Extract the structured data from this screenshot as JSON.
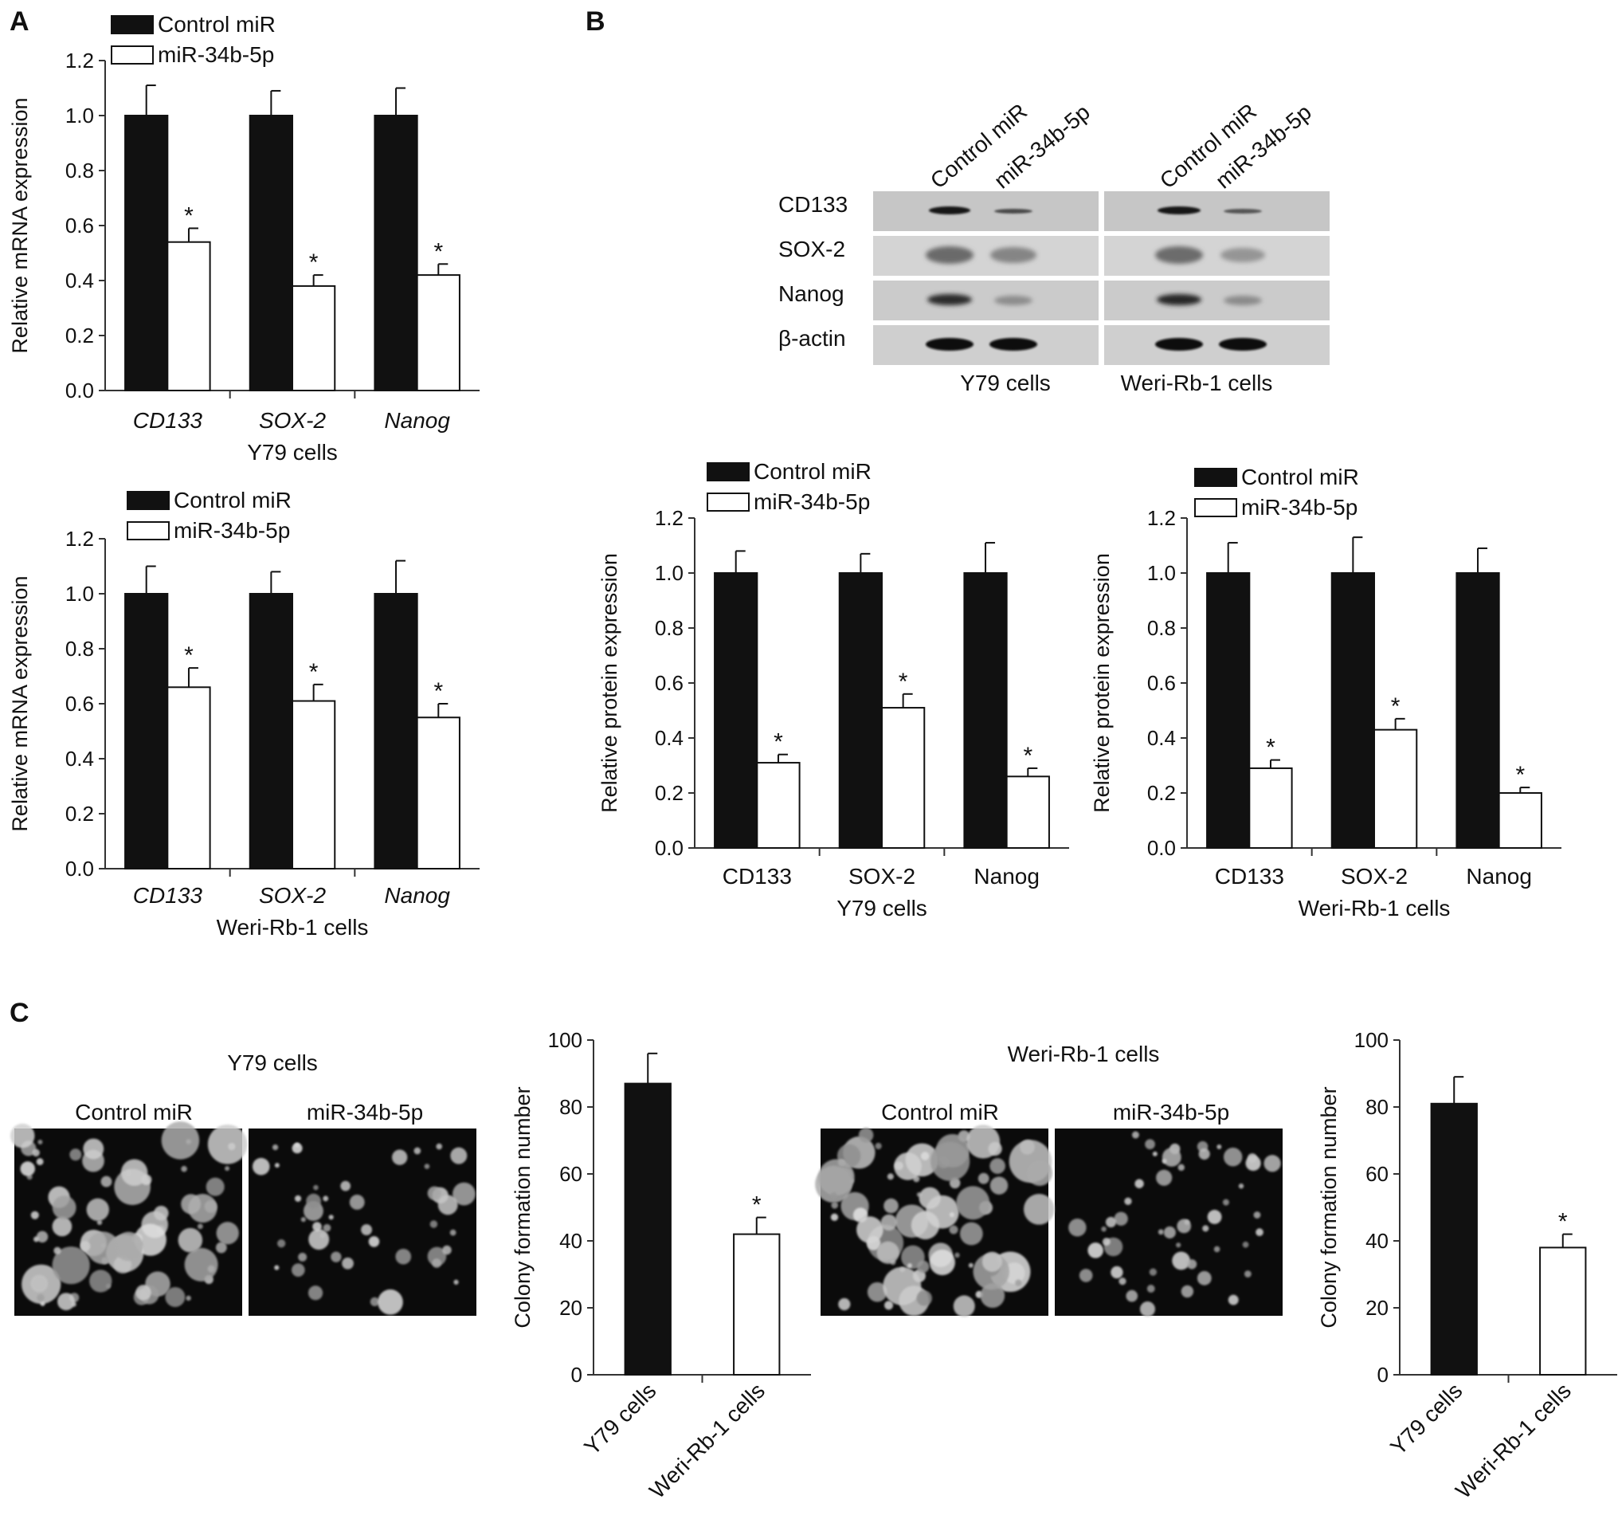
{
  "panels": {
    "a": {
      "letter": "A"
    },
    "b": {
      "letter": "B"
    },
    "c": {
      "letter": "C"
    }
  },
  "colors": {
    "control": "#111111",
    "treated": "#ffffff",
    "axis": "#333333"
  },
  "western_blot": {
    "lane_labels": [
      "Control miR",
      "miR-34b-5p",
      "Control miR",
      "miR-34b-5p"
    ],
    "band_labels": [
      "CD133",
      "SOX-2",
      "Nanog",
      "β-actin"
    ],
    "group_labels": [
      "Y79 cells",
      "Weri-Rb-1 cells"
    ]
  },
  "colony_images": [
    {
      "title": "Y79 cells",
      "labels": [
        "Control miR",
        "miR-34b-5p"
      ]
    },
    {
      "title": "Weri-Rb-1 cells",
      "labels": [
        "Control miR",
        "miR-34b-5p"
      ]
    }
  ],
  "chart_data": [
    {
      "id": "a1",
      "type": "bar",
      "categories": [
        "CD133",
        "SOX-2",
        "Nanog"
      ],
      "categories_italic": true,
      "xlabel": "Y79 cells",
      "ylabel": "Relative mRNA expression",
      "ylim": [
        0,
        1.2
      ],
      "yticks": [
        "0.0",
        "0.2",
        "0.4",
        "0.6",
        "0.8",
        "1.0",
        "1.2"
      ],
      "legend_position": "top-left",
      "series": [
        {
          "name": "Control miR",
          "values": [
            1.0,
            1.0,
            1.0
          ],
          "errors": [
            0.11,
            0.09,
            0.1
          ]
        },
        {
          "name": "miR-34b-5p",
          "values": [
            0.54,
            0.38,
            0.42
          ],
          "errors": [
            0.05,
            0.04,
            0.04
          ]
        }
      ],
      "significance": [
        [
          false,
          false,
          false
        ],
        [
          "*",
          "*",
          "*"
        ]
      ]
    },
    {
      "id": "a2",
      "type": "bar",
      "categories": [
        "CD133",
        "SOX-2",
        "Nanog"
      ],
      "categories_italic": true,
      "xlabel": "Weri-Rb-1 cells",
      "ylabel": "Relative mRNA expression",
      "ylim": [
        0,
        1.2
      ],
      "yticks": [
        "0.0",
        "0.2",
        "0.4",
        "0.6",
        "0.8",
        "1.0",
        "1.2"
      ],
      "legend_position": "top-left",
      "series": [
        {
          "name": "Control miR",
          "values": [
            1.0,
            1.0,
            1.0
          ],
          "errors": [
            0.1,
            0.08,
            0.12
          ]
        },
        {
          "name": "miR-34b-5p",
          "values": [
            0.66,
            0.61,
            0.55
          ],
          "errors": [
            0.07,
            0.06,
            0.05
          ]
        }
      ],
      "significance": [
        [
          false,
          false,
          false
        ],
        [
          "*",
          "*",
          "*"
        ]
      ]
    },
    {
      "id": "b1",
      "type": "bar",
      "categories": [
        "CD133",
        "SOX-2",
        "Nanog"
      ],
      "categories_italic": false,
      "xlabel": "Y79 cells",
      "ylabel": "Relative protein expression",
      "ylim": [
        0,
        1.2
      ],
      "yticks": [
        "0.0",
        "0.2",
        "0.4",
        "0.6",
        "0.8",
        "1.0",
        "1.2"
      ],
      "legend_position": "top-left",
      "series": [
        {
          "name": "Control miR",
          "values": [
            1.0,
            1.0,
            1.0
          ],
          "errors": [
            0.08,
            0.07,
            0.11
          ]
        },
        {
          "name": "miR-34b-5p",
          "values": [
            0.31,
            0.51,
            0.26
          ],
          "errors": [
            0.03,
            0.05,
            0.03
          ]
        }
      ],
      "significance": [
        [
          false,
          false,
          false
        ],
        [
          "*",
          "*",
          "*"
        ]
      ]
    },
    {
      "id": "b2",
      "type": "bar",
      "categories": [
        "CD133",
        "SOX-2",
        "Nanog"
      ],
      "categories_italic": false,
      "xlabel": "Weri-Rb-1 cells",
      "ylabel": "Relative protein expression",
      "ylim": [
        0,
        1.2
      ],
      "yticks": [
        "0.0",
        "0.2",
        "0.4",
        "0.6",
        "0.8",
        "1.0",
        "1.2"
      ],
      "legend_position": "top-left",
      "series": [
        {
          "name": "Control miR",
          "values": [
            1.0,
            1.0,
            1.0
          ],
          "errors": [
            0.11,
            0.13,
            0.09
          ]
        },
        {
          "name": "miR-34b-5p",
          "values": [
            0.29,
            0.43,
            0.2
          ],
          "errors": [
            0.03,
            0.04,
            0.02
          ]
        }
      ],
      "significance": [
        [
          false,
          false,
          false
        ],
        [
          "*",
          "*",
          "*"
        ]
      ]
    },
    {
      "id": "c1",
      "type": "bar",
      "categories": [
        "Y79 cells",
        "Weri-Rb-1 cells"
      ],
      "categories_rotated": true,
      "xlabel": "",
      "ylabel": "Colony formation number",
      "ylim": [
        0,
        100
      ],
      "yticks": [
        "0",
        "20",
        "40",
        "60",
        "80",
        "100"
      ],
      "bars": [
        {
          "value": 87,
          "error": 9,
          "color": "#111111",
          "sig": ""
        },
        {
          "value": 42,
          "error": 5,
          "color": "#ffffff",
          "sig": "*"
        }
      ]
    },
    {
      "id": "c2",
      "type": "bar",
      "categories": [
        "Y79 cells",
        "Weri-Rb-1 cells"
      ],
      "categories_rotated": true,
      "xlabel": "",
      "ylabel": "Colony formation number",
      "ylim": [
        0,
        100
      ],
      "yticks": [
        "0",
        "20",
        "40",
        "60",
        "80",
        "100"
      ],
      "bars": [
        {
          "value": 81,
          "error": 8,
          "color": "#111111",
          "sig": ""
        },
        {
          "value": 38,
          "error": 4,
          "color": "#ffffff",
          "sig": "*"
        }
      ]
    }
  ]
}
